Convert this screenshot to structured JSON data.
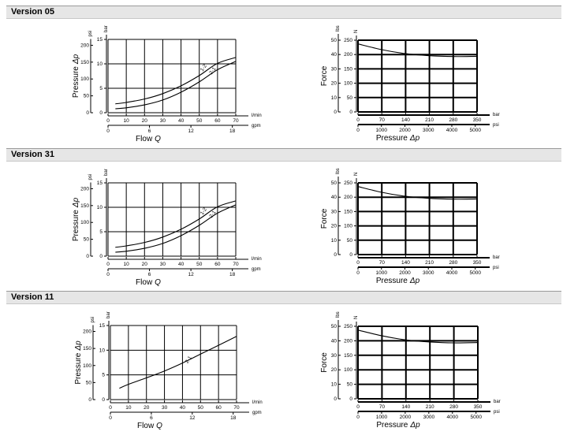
{
  "chart_data": [
    {
      "type": "line",
      "version": "Version 05",
      "xlabel_word": "Flow",
      "xlabel_symbol": "Q",
      "ylabel_word": "Pressure",
      "ylabel_symbol": "Δp",
      "x_unit": "l/min",
      "x2_unit": "gpm",
      "y_unit": "bar",
      "y2_unit": "psi",
      "x_ticks": [
        0,
        10,
        20,
        30,
        40,
        50,
        60,
        70
      ],
      "x2_ticks": [
        0,
        6,
        12,
        18
      ],
      "y_ticks": [
        0,
        5,
        10,
        15
      ],
      "y2_ticks": [
        0,
        50,
        100,
        150,
        200
      ],
      "xlim": [
        0,
        70
      ],
      "ylim": [
        0,
        15
      ],
      "series": [
        {
          "name": "1-2",
          "x": [
            4,
            10,
            20,
            30,
            40,
            50,
            60,
            70
          ],
          "y": [
            1.8,
            2.1,
            2.8,
            3.9,
            5.5,
            7.6,
            10.1,
            11.3
          ]
        },
        {
          "name": "2-1",
          "x": [
            4,
            10,
            20,
            30,
            40,
            50,
            60,
            70
          ],
          "y": [
            0.8,
            1.0,
            1.6,
            2.6,
            4.2,
            6.3,
            8.8,
            10.5
          ]
        }
      ]
    },
    {
      "type": "line",
      "version": "Version 05",
      "xlabel_word": "Pressure",
      "xlabel_symbol": "Δp",
      "ylabel_word": "Force",
      "x_unit": "bar",
      "x2_unit": "psi",
      "y_unit": "N",
      "y2_unit": "lbs",
      "x_ticks": [
        0,
        70,
        140,
        210,
        280,
        350
      ],
      "x2_ticks": [
        0,
        1000,
        2000,
        3000,
        4000,
        5000
      ],
      "y_ticks": [
        0,
        50,
        100,
        150,
        200,
        250
      ],
      "y2_ticks": [
        0,
        10,
        20,
        30,
        40,
        50
      ],
      "xlim": [
        0,
        350
      ],
      "ylim": [
        0,
        250
      ],
      "series": [
        {
          "name": "",
          "x": [
            0,
            70,
            140,
            210,
            280,
            350
          ],
          "y": [
            237,
            217,
            203,
            196,
            193,
            194
          ]
        }
      ]
    },
    {
      "type": "line",
      "version": "Version 31",
      "xlabel_word": "Flow",
      "xlabel_symbol": "Q",
      "ylabel_word": "Pressure",
      "ylabel_symbol": "Δp",
      "x_unit": "l/min",
      "x2_unit": "gpm",
      "y_unit": "bar",
      "y2_unit": "psi",
      "x_ticks": [
        0,
        10,
        20,
        30,
        40,
        50,
        60,
        70
      ],
      "x2_ticks": [
        0,
        6,
        12,
        18
      ],
      "y_ticks": [
        0,
        5,
        10,
        15
      ],
      "y2_ticks": [
        0,
        50,
        100,
        150,
        200
      ],
      "xlim": [
        0,
        70
      ],
      "ylim": [
        0,
        15
      ],
      "series": [
        {
          "name": "1-2",
          "x": [
            4,
            10,
            20,
            30,
            40,
            50,
            60,
            70
          ],
          "y": [
            1.8,
            2.1,
            2.8,
            3.9,
            5.5,
            7.6,
            10.1,
            11.3
          ]
        },
        {
          "name": "2-1",
          "x": [
            4,
            10,
            20,
            30,
            40,
            50,
            60,
            70
          ],
          "y": [
            0.8,
            1.0,
            1.6,
            2.6,
            4.2,
            6.3,
            8.8,
            10.5
          ]
        }
      ]
    },
    {
      "type": "line",
      "version": "Version 31",
      "xlabel_word": "Pressure",
      "xlabel_symbol": "Δp",
      "ylabel_word": "Force",
      "x_unit": "bar",
      "x2_unit": "psi",
      "y_unit": "N",
      "y2_unit": "lbs",
      "x_ticks": [
        0,
        70,
        140,
        210,
        280,
        350
      ],
      "x2_ticks": [
        0,
        1000,
        2000,
        3000,
        4000,
        5000
      ],
      "y_ticks": [
        0,
        50,
        100,
        150,
        200,
        250
      ],
      "y2_ticks": [
        0,
        10,
        20,
        30,
        40,
        50
      ],
      "xlim": [
        0,
        350
      ],
      "ylim": [
        0,
        250
      ],
      "series": [
        {
          "name": "",
          "x": [
            0,
            70,
            140,
            210,
            280,
            350
          ],
          "y": [
            237,
            217,
            203,
            196,
            193,
            194
          ]
        }
      ]
    },
    {
      "type": "line",
      "version": "Version 11",
      "xlabel_word": "Flow",
      "xlabel_symbol": "Q",
      "ylabel_word": "Pressure",
      "ylabel_symbol": "Δp",
      "x_unit": "l/min",
      "x2_unit": "gpm",
      "y_unit": "bar",
      "y2_unit": "psi",
      "x_ticks": [
        0,
        10,
        20,
        30,
        40,
        50,
        60,
        70
      ],
      "x2_ticks": [
        0,
        6,
        12,
        18
      ],
      "y_ticks": [
        0,
        5,
        10,
        15
      ],
      "y2_ticks": [
        0,
        50,
        100,
        150,
        200
      ],
      "xlim": [
        0,
        70
      ],
      "ylim": [
        0,
        15
      ],
      "series": [
        {
          "name": "2-1",
          "x": [
            5,
            10,
            20,
            30,
            40,
            50,
            60,
            70
          ],
          "y": [
            2.3,
            3.1,
            4.4,
            5.8,
            7.4,
            9.2,
            11.0,
            12.8
          ]
        }
      ]
    },
    {
      "type": "line",
      "version": "Version 11",
      "xlabel_word": "Pressure",
      "xlabel_symbol": "Δp",
      "ylabel_word": "Force",
      "x_unit": "bar",
      "x2_unit": "psi",
      "y_unit": "N",
      "y2_unit": "lbs",
      "x_ticks": [
        0,
        70,
        140,
        210,
        280,
        350
      ],
      "x2_ticks": [
        0,
        1000,
        2000,
        3000,
        4000,
        5000
      ],
      "y_ticks": [
        0,
        50,
        100,
        150,
        200,
        250
      ],
      "y2_ticks": [
        0,
        10,
        20,
        30,
        40,
        50
      ],
      "xlim": [
        0,
        350
      ],
      "ylim": [
        0,
        250
      ],
      "series": [
        {
          "name": "",
          "x": [
            0,
            70,
            140,
            210,
            280,
            350
          ],
          "y": [
            237,
            217,
            203,
            196,
            193,
            194
          ]
        }
      ]
    }
  ],
  "colors": {
    "header_bg": "#e6e6e6",
    "ink": "#000000"
  }
}
